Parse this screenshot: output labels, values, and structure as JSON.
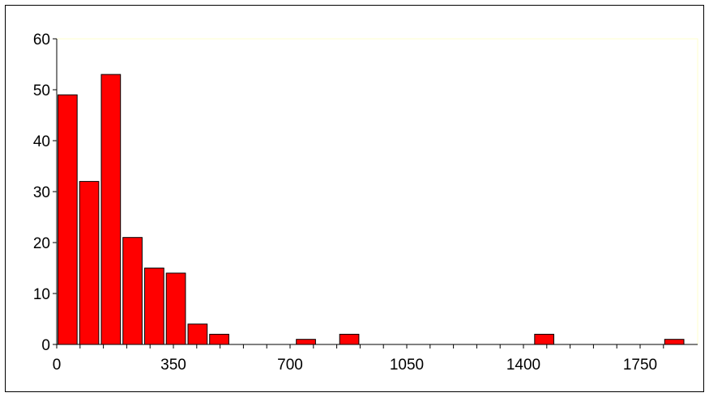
{
  "chart_data": {
    "type": "bar",
    "title": "",
    "xlabel": "",
    "ylabel": "",
    "bar_color": "#ff0000",
    "bar_edge_color": "#000000",
    "plot_border_color": "#ffffcc",
    "grid": false,
    "legend": "none",
    "xlim": [
      0,
      1850
    ],
    "ylim": [
      0,
      60
    ],
    "bin_width": 65,
    "x_ticks": [
      0,
      350,
      700,
      1050,
      1400,
      1750
    ],
    "y_ticks": [
      0,
      10,
      20,
      30,
      40,
      50,
      60
    ],
    "x_tick_labels": [
      "0",
      "350",
      "700",
      "1050",
      "1400",
      "1750"
    ],
    "y_tick_labels": [
      "0",
      "10",
      "20",
      "30",
      "40",
      "50",
      "60"
    ],
    "bins": [
      {
        "x": 32.5,
        "value": 49
      },
      {
        "x": 97.5,
        "value": 32
      },
      {
        "x": 162.5,
        "value": 53
      },
      {
        "x": 227.5,
        "value": 21
      },
      {
        "x": 292.5,
        "value": 15
      },
      {
        "x": 357.5,
        "value": 14
      },
      {
        "x": 422.5,
        "value": 4
      },
      {
        "x": 487.5,
        "value": 2
      },
      {
        "x": 552.5,
        "value": 0
      },
      {
        "x": 617.5,
        "value": 0
      },
      {
        "x": 682.5,
        "value": 0
      },
      {
        "x": 747.5,
        "value": 1
      },
      {
        "x": 812.5,
        "value": 0
      },
      {
        "x": 877.5,
        "value": 2
      },
      {
        "x": 942.5,
        "value": 0
      },
      {
        "x": 1007.5,
        "value": 0
      },
      {
        "x": 1072.5,
        "value": 0
      },
      {
        "x": 1137.5,
        "value": 0
      },
      {
        "x": 1202.5,
        "value": 0
      },
      {
        "x": 1267.5,
        "value": 0
      },
      {
        "x": 1332.5,
        "value": 0
      },
      {
        "x": 1397.5,
        "value": 0
      },
      {
        "x": 1462.5,
        "value": 2
      },
      {
        "x": 1527.5,
        "value": 0
      },
      {
        "x": 1592.5,
        "value": 0
      },
      {
        "x": 1657.5,
        "value": 0
      },
      {
        "x": 1722.5,
        "value": 0
      },
      {
        "x": 1787.5,
        "value": 0
      },
      {
        "x": 1852.5,
        "value": 1
      }
    ]
  }
}
